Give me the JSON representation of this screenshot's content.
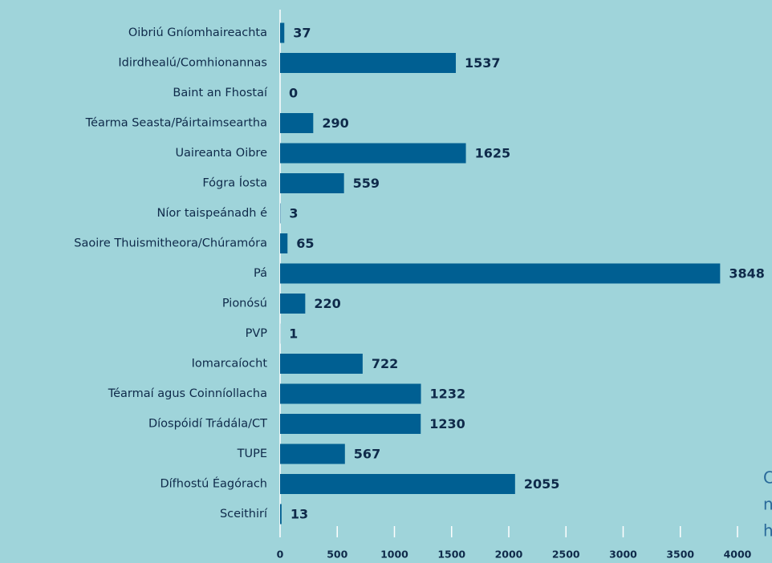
{
  "chart_data": {
    "type": "bar",
    "orientation": "horizontal",
    "categories": [
      "Oibriú Gníomhaireachta",
      "Idirdhealú/Comhionannas",
      "Baint an Fhostaí",
      "Téarma Seasta/Páirtaimseartha",
      "Uaireanta Oibre",
      "Fógra Íosta",
      "Níor taispeánadh é",
      "Saoire Thuismitheora/Chúramóra",
      "Pá",
      "Pionósú",
      "PVP",
      "Iomarcaíocht",
      "Téarmaí agus Coinníollacha",
      "Díospóidí Trádála/CT",
      "TUPE",
      "Dífhostú Éagórach",
      "Sceithirí"
    ],
    "values": [
      37,
      1537,
      0,
      290,
      1625,
      559,
      3,
      65,
      3848,
      220,
      1,
      722,
      1232,
      1230,
      567,
      2055,
      13
    ],
    "color": "#005f92",
    "xlim": [
      0,
      4000
    ],
    "xticks": [
      0,
      500,
      1000,
      1500,
      2000,
      2500,
      3000,
      3500,
      4000
    ]
  },
  "side_text": [
    "C",
    "n",
    "h"
  ]
}
